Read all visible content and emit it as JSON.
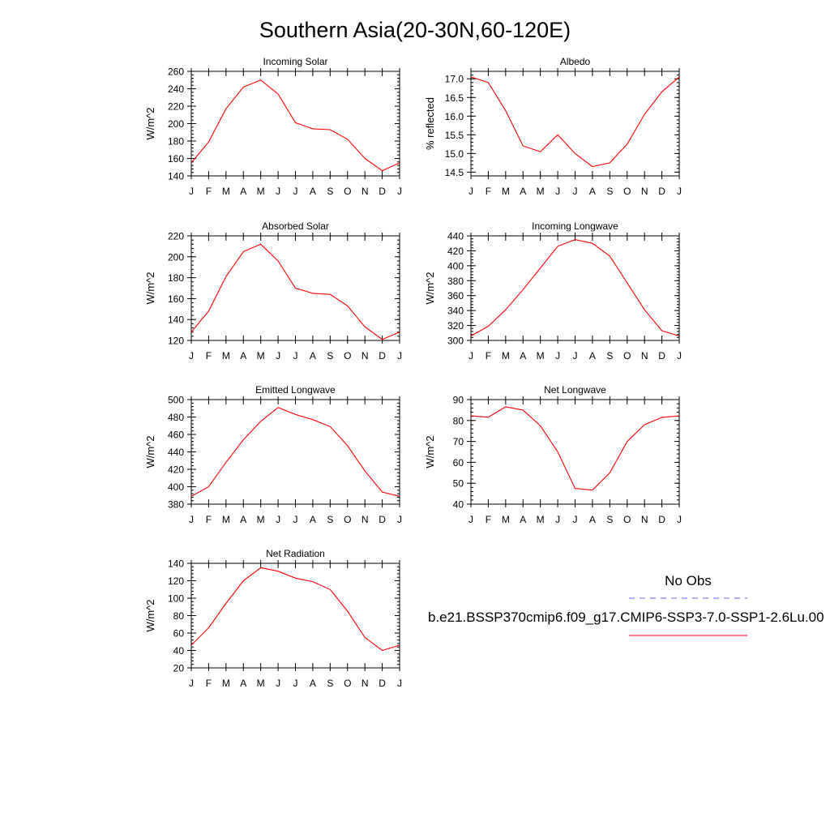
{
  "page_title": "Southern Asia(20-30N,60-120E)",
  "legend": {
    "obs_label": "No Obs",
    "obs_color": "#6666ff",
    "model_label": "b.e21.BSSP370cmip6.f09_g17.CMIP6-SSP3-7.0-SSP1-2.6Lu.00",
    "model_color": "#ff0000"
  },
  "chart_data": [
    {
      "type": "line",
      "title": "Incoming Solar",
      "ylabel": "W/m^2",
      "x": [
        "J",
        "F",
        "M",
        "A",
        "M",
        "J",
        "J",
        "A",
        "S",
        "O",
        "N",
        "D",
        "J"
      ],
      "ylim": [
        140,
        260
      ],
      "yticks": [
        "140",
        "160",
        "180",
        "200",
        "220",
        "240",
        "260"
      ],
      "series": [
        {
          "values": [
            155,
            179,
            217,
            242,
            250,
            234,
            201,
            194,
            193,
            182,
            160,
            146,
            155
          ]
        }
      ]
    },
    {
      "type": "line",
      "title": "Albedo",
      "ylabel": "% reflected",
      "x": [
        "J",
        "F",
        "M",
        "A",
        "M",
        "J",
        "J",
        "A",
        "S",
        "O",
        "N",
        "D",
        "J"
      ],
      "ylim": [
        14.4,
        17.2
      ],
      "yticks": [
        "14.5",
        "15.0",
        "15.5",
        "16.0",
        "16.5",
        "17.0"
      ],
      "series": [
        {
          "values": [
            17.05,
            16.9,
            16.15,
            15.2,
            15.05,
            15.5,
            15.0,
            14.65,
            14.75,
            15.25,
            16.05,
            16.65,
            17.05
          ]
        }
      ]
    },
    {
      "type": "line",
      "title": "Absorbed Solar",
      "ylabel": "W/m^2",
      "x": [
        "J",
        "F",
        "M",
        "A",
        "M",
        "J",
        "J",
        "A",
        "S",
        "O",
        "N",
        "D",
        "J"
      ],
      "ylim": [
        120,
        220
      ],
      "yticks": [
        "120",
        "140",
        "160",
        "180",
        "200",
        "220"
      ],
      "series": [
        {
          "values": [
            128,
            148,
            181,
            205,
            212,
            196,
            170,
            165,
            164,
            153,
            133,
            121,
            128
          ]
        }
      ]
    },
    {
      "type": "line",
      "title": "Incoming Longwave",
      "ylabel": "W/m^2",
      "x": [
        "J",
        "F",
        "M",
        "A",
        "M",
        "J",
        "J",
        "A",
        "S",
        "O",
        "N",
        "D",
        "J"
      ],
      "ylim": [
        300,
        440
      ],
      "yticks": [
        "300",
        "320",
        "340",
        "360",
        "380",
        "400",
        "420",
        "440"
      ],
      "series": [
        {
          "values": [
            306,
            319,
            341,
            368,
            397,
            426,
            435,
            430,
            413,
            377,
            341,
            313,
            306
          ]
        }
      ]
    },
    {
      "type": "line",
      "title": "Emitted Longwave",
      "ylabel": "W/m^2",
      "x": [
        "J",
        "F",
        "M",
        "A",
        "M",
        "J",
        "J",
        "A",
        "S",
        "O",
        "N",
        "D",
        "J"
      ],
      "ylim": [
        380,
        500
      ],
      "yticks": [
        "380",
        "400",
        "420",
        "440",
        "460",
        "480",
        "500"
      ],
      "series": [
        {
          "values": [
            389,
            400,
            428,
            454,
            475,
            491,
            483,
            477,
            469,
            447,
            418,
            394,
            389
          ]
        }
      ]
    },
    {
      "type": "line",
      "title": "Net Longwave",
      "ylabel": "W/m^2",
      "x": [
        "J",
        "F",
        "M",
        "A",
        "M",
        "J",
        "J",
        "A",
        "S",
        "O",
        "N",
        "D",
        "J"
      ],
      "ylim": [
        40,
        90
      ],
      "yticks": [
        "40",
        "50",
        "60",
        "70",
        "80",
        "90"
      ],
      "series": [
        {
          "values": [
            82.2,
            81.6,
            86.5,
            85,
            77.5,
            65,
            47.5,
            46.7,
            55,
            70,
            78,
            81.5,
            82.2
          ]
        }
      ]
    },
    {
      "type": "line",
      "title": "Net Radiation",
      "ylabel": "W/m^2",
      "x": [
        "J",
        "F",
        "M",
        "A",
        "M",
        "J",
        "J",
        "A",
        "S",
        "O",
        "N",
        "D",
        "J"
      ],
      "ylim": [
        20,
        140
      ],
      "yticks": [
        "20",
        "40",
        "60",
        "80",
        "100",
        "120",
        "140"
      ],
      "series": [
        {
          "values": [
            46,
            66,
            94,
            120,
            135,
            131,
            123,
            119,
            110,
            85,
            55,
            40,
            46
          ]
        }
      ]
    }
  ]
}
